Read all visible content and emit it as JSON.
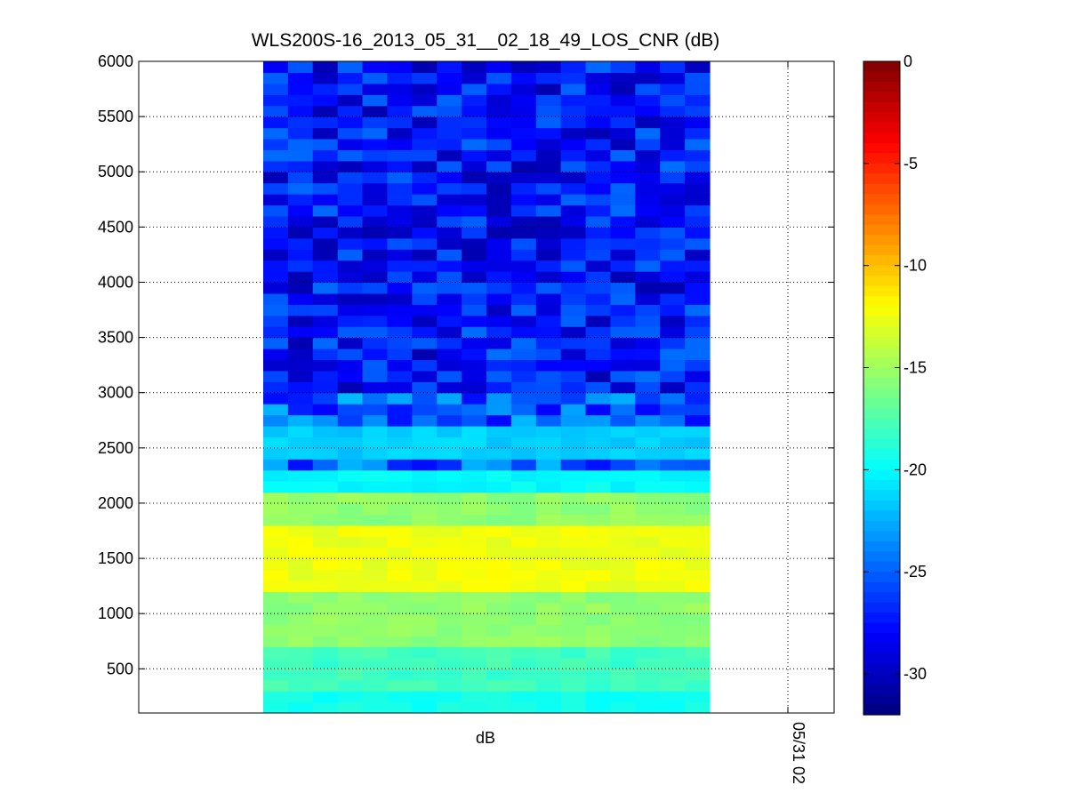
{
  "chart_data": {
    "type": "heatmap",
    "title": "WLS200S-16_2013_05_31__02_18_49_LOS_CNR (dB)",
    "xlabel": "dB",
    "x_tick_labels": [
      "05/31 02"
    ],
    "y_ticks": [
      500,
      1000,
      1500,
      2000,
      2500,
      3000,
      3500,
      4000,
      4500,
      5000,
      5500,
      6000
    ],
    "ylim": [
      100,
      6000
    ],
    "grid": true,
    "colorbar": {
      "ticks": [
        0,
        -5,
        -10,
        -15,
        -20,
        -25,
        -30
      ],
      "range": [
        -32,
        0
      ],
      "colormap": "jet"
    },
    "columns": 18,
    "row_bands": [
      {
        "from": 100,
        "to": 300,
        "value": -19.5
      },
      {
        "from": 300,
        "to": 700,
        "value": -18
      },
      {
        "from": 700,
        "to": 1200,
        "value": -15.5
      },
      {
        "from": 1200,
        "to": 1800,
        "value": -12.5
      },
      {
        "from": 1800,
        "to": 2100,
        "value": -15.5
      },
      {
        "from": 2100,
        "to": 2300,
        "value": -20
      },
      {
        "from": 2300,
        "to": 2400,
        "value": -25
      },
      {
        "from": 2400,
        "to": 2700,
        "value": -21.5
      },
      {
        "from": 2700,
        "to": 3000,
        "value": -25
      },
      {
        "from": 3000,
        "to": 6000,
        "value": -27.5
      }
    ]
  }
}
